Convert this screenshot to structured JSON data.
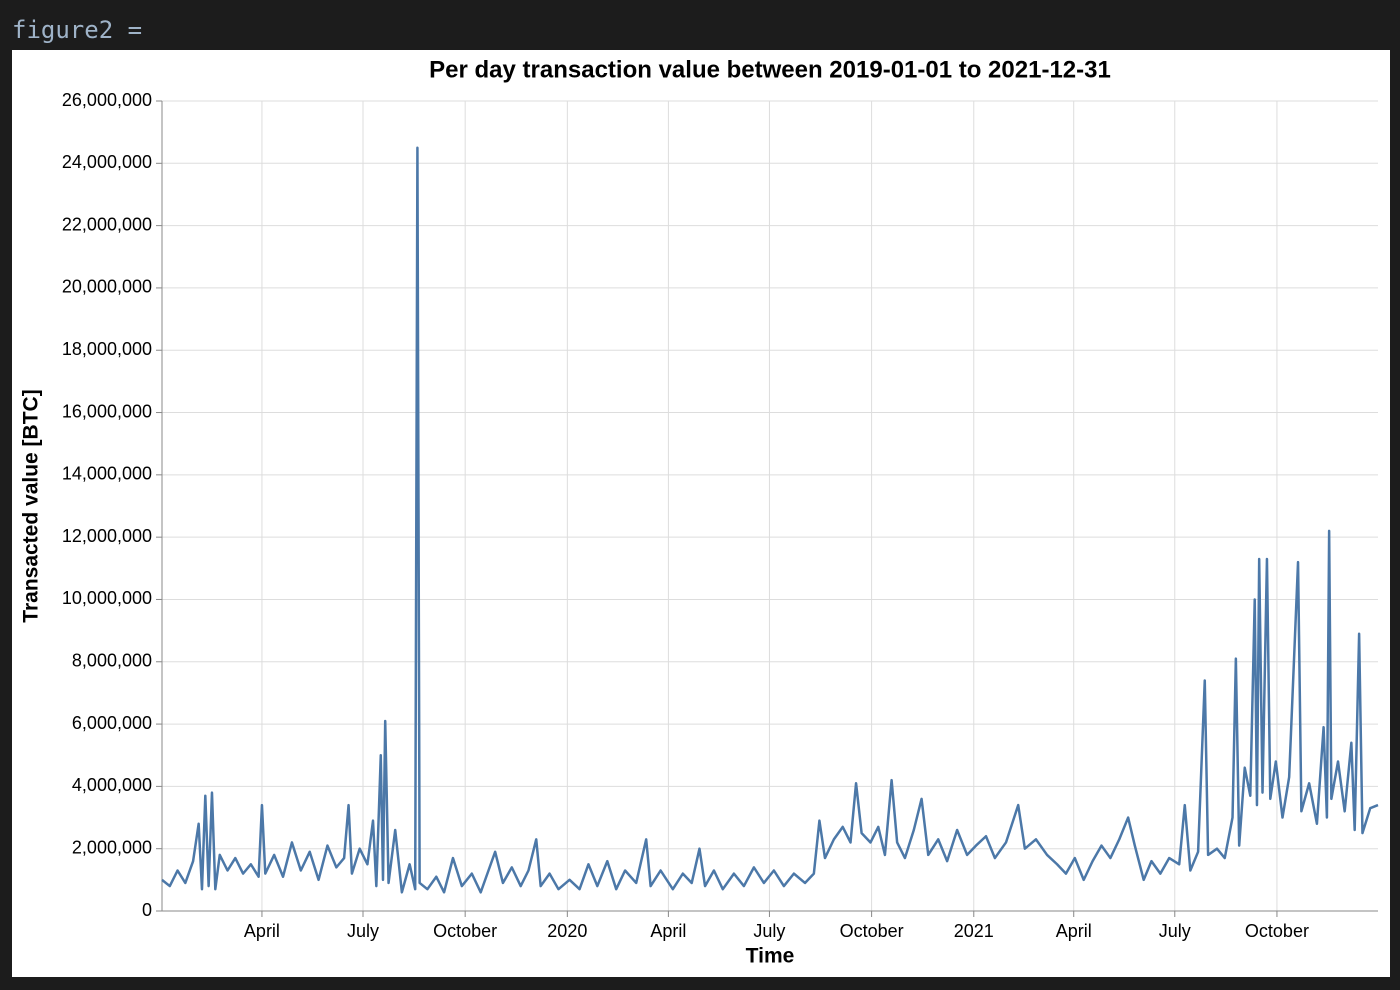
{
  "header": {
    "code": "figure2 ="
  },
  "chart_data": {
    "type": "line",
    "title": "Per day transaction value between 2019-01-01 to 2021-12-31",
    "x_label": "Time",
    "y_label": "Transacted value [BTC]",
    "grid": true,
    "xlim": [
      "2019-01-01",
      "2021-12-31"
    ],
    "xticks": [
      {
        "value": "2019-04-01",
        "label": "April"
      },
      {
        "value": "2019-07-01",
        "label": "July"
      },
      {
        "value": "2019-10-01",
        "label": "October"
      },
      {
        "value": "2020-01-01",
        "label": "2020"
      },
      {
        "value": "2020-04-01",
        "label": "April"
      },
      {
        "value": "2020-07-01",
        "label": "July"
      },
      {
        "value": "2020-10-01",
        "label": "October"
      },
      {
        "value": "2021-01-01",
        "label": "2021"
      },
      {
        "value": "2021-04-01",
        "label": "April"
      },
      {
        "value": "2021-07-01",
        "label": "July"
      },
      {
        "value": "2021-10-01",
        "label": "October"
      }
    ],
    "ylim": [
      0,
      26000000
    ],
    "yticks": [
      0,
      {
        "value": 2000000,
        "label": "2,000,000"
      },
      {
        "value": 4000000,
        "label": "4,000,000"
      },
      {
        "value": 6000000,
        "label": "6,000,000"
      },
      {
        "value": 8000000,
        "label": "8,000,000"
      },
      {
        "value": 10000000,
        "label": "10,000,000"
      },
      {
        "value": 12000000,
        "label": "12,000,000"
      },
      {
        "value": 14000000,
        "label": "14,000,000"
      },
      {
        "value": 16000000,
        "label": "16,000,000"
      },
      {
        "value": 18000000,
        "label": "18,000,000"
      },
      {
        "value": 20000000,
        "label": "20,000,000"
      },
      {
        "value": 22000000,
        "label": "22,000,000"
      },
      {
        "value": 24000000,
        "label": "24,000,000"
      },
      {
        "value": 26000000,
        "label": "26,000,000"
      }
    ],
    "x": [
      "2019-01-01",
      "2019-01-08",
      "2019-01-15",
      "2019-01-22",
      "2019-01-29",
      "2019-02-03",
      "2019-02-06",
      "2019-02-09",
      "2019-02-12",
      "2019-02-15",
      "2019-02-18",
      "2019-02-22",
      "2019-03-01",
      "2019-03-08",
      "2019-03-15",
      "2019-03-22",
      "2019-03-29",
      "2019-04-01",
      "2019-04-04",
      "2019-04-12",
      "2019-04-20",
      "2019-04-28",
      "2019-05-06",
      "2019-05-14",
      "2019-05-22",
      "2019-05-30",
      "2019-06-07",
      "2019-06-14",
      "2019-06-18",
      "2019-06-21",
      "2019-06-28",
      "2019-07-05",
      "2019-07-10",
      "2019-07-13",
      "2019-07-17",
      "2019-07-19",
      "2019-07-21",
      "2019-07-24",
      "2019-07-30",
      "2019-08-05",
      "2019-08-12",
      "2019-08-17",
      "2019-08-19",
      "2019-08-21",
      "2019-08-28",
      "2019-09-05",
      "2019-09-12",
      "2019-09-20",
      "2019-09-28",
      "2019-10-07",
      "2019-10-15",
      "2019-10-22",
      "2019-10-28",
      "2019-11-04",
      "2019-11-12",
      "2019-11-20",
      "2019-11-27",
      "2019-12-04",
      "2019-12-08",
      "2019-12-16",
      "2019-12-24",
      "2020-01-03",
      "2020-01-12",
      "2020-01-20",
      "2020-01-28",
      "2020-02-06",
      "2020-02-14",
      "2020-02-22",
      "2020-03-03",
      "2020-03-12",
      "2020-03-16",
      "2020-03-25",
      "2020-04-05",
      "2020-04-14",
      "2020-04-22",
      "2020-04-29",
      "2020-05-04",
      "2020-05-12",
      "2020-05-20",
      "2020-05-30",
      "2020-06-08",
      "2020-06-17",
      "2020-06-26",
      "2020-07-05",
      "2020-07-14",
      "2020-07-23",
      "2020-08-02",
      "2020-08-10",
      "2020-08-15",
      "2020-08-20",
      "2020-08-28",
      "2020-09-05",
      "2020-09-12",
      "2020-09-17",
      "2020-09-22",
      "2020-09-30",
      "2020-10-07",
      "2020-10-13",
      "2020-10-19",
      "2020-10-24",
      "2020-10-31",
      "2020-11-08",
      "2020-11-15",
      "2020-11-21",
      "2020-11-30",
      "2020-12-08",
      "2020-12-17",
      "2020-12-26",
      "2021-01-03",
      "2021-01-12",
      "2021-01-20",
      "2021-01-30",
      "2021-02-10",
      "2021-02-16",
      "2021-02-26",
      "2021-03-08",
      "2021-03-17",
      "2021-03-25",
      "2021-04-02",
      "2021-04-10",
      "2021-04-18",
      "2021-04-26",
      "2021-05-04",
      "2021-05-12",
      "2021-05-20",
      "2021-05-26",
      "2021-06-03",
      "2021-06-10",
      "2021-06-18",
      "2021-06-26",
      "2021-07-05",
      "2021-07-10",
      "2021-07-15",
      "2021-07-22",
      "2021-07-28",
      "2021-07-31",
      "2021-08-08",
      "2021-08-15",
      "2021-08-22",
      "2021-08-25",
      "2021-08-28",
      "2021-09-02",
      "2021-09-07",
      "2021-09-11",
      "2021-09-13",
      "2021-09-15",
      "2021-09-18",
      "2021-09-22",
      "2021-09-25",
      "2021-09-30",
      "2021-10-06",
      "2021-10-12",
      "2021-10-20",
      "2021-10-23",
      "2021-10-30",
      "2021-11-06",
      "2021-11-12",
      "2021-11-15",
      "2021-11-17",
      "2021-11-19",
      "2021-11-25",
      "2021-12-01",
      "2021-12-07",
      "2021-12-10",
      "2021-12-14",
      "2021-12-17",
      "2021-12-24",
      "2021-12-31"
    ],
    "series": [
      {
        "name": "Transacted value",
        "color": "#4c78a8",
        "values": [
          1000000,
          800000,
          1300000,
          900000,
          1600000,
          2800000,
          700000,
          3700000,
          800000,
          3800000,
          700000,
          1800000,
          1300000,
          1700000,
          1200000,
          1500000,
          1100000,
          3400000,
          1200000,
          1800000,
          1100000,
          2200000,
          1300000,
          1900000,
          1000000,
          2100000,
          1400000,
          1700000,
          3400000,
          1200000,
          2000000,
          1500000,
          2900000,
          800000,
          5000000,
          1000000,
          6100000,
          900000,
          2600000,
          600000,
          1500000,
          700000,
          24500000,
          900000,
          700000,
          1100000,
          600000,
          1700000,
          800000,
          1200000,
          600000,
          1300000,
          1900000,
          900000,
          1400000,
          800000,
          1300000,
          2300000,
          800000,
          1200000,
          700000,
          1000000,
          700000,
          1500000,
          800000,
          1600000,
          700000,
          1300000,
          900000,
          2300000,
          800000,
          1300000,
          700000,
          1200000,
          900000,
          2000000,
          800000,
          1300000,
          700000,
          1200000,
          800000,
          1400000,
          900000,
          1300000,
          800000,
          1200000,
          900000,
          1200000,
          2900000,
          1700000,
          2300000,
          2700000,
          2200000,
          4100000,
          2500000,
          2200000,
          2700000,
          1800000,
          4200000,
          2200000,
          1700000,
          2600000,
          3600000,
          1800000,
          2300000,
          1600000,
          2600000,
          1800000,
          2100000,
          2400000,
          1700000,
          2200000,
          3400000,
          2000000,
          2300000,
          1800000,
          1500000,
          1200000,
          1700000,
          1000000,
          1600000,
          2100000,
          1700000,
          2300000,
          3000000,
          2100000,
          1000000,
          1600000,
          1200000,
          1700000,
          1500000,
          3400000,
          1300000,
          1900000,
          7400000,
          1800000,
          2000000,
          1700000,
          3000000,
          8100000,
          2100000,
          4600000,
          3700000,
          10000000,
          3400000,
          11300000,
          3800000,
          11300000,
          3600000,
          4800000,
          3000000,
          4300000,
          11200000,
          3200000,
          4100000,
          2800000,
          5900000,
          3000000,
          12200000,
          3600000,
          4800000,
          3200000,
          5400000,
          2600000,
          8900000,
          2500000,
          3300000,
          3400000
        ]
      }
    ]
  }
}
